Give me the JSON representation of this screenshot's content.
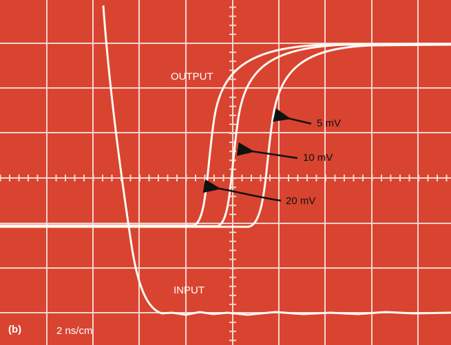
{
  "traces": {
    "output_label": "OUTPUT",
    "input_label": "INPUT"
  },
  "annotations": {
    "mv5": "5 mV",
    "mv10": "10 mV",
    "mv20": "20 mV"
  },
  "footer": {
    "panel": "(b)",
    "timebase": "2 ns/cm"
  }
}
